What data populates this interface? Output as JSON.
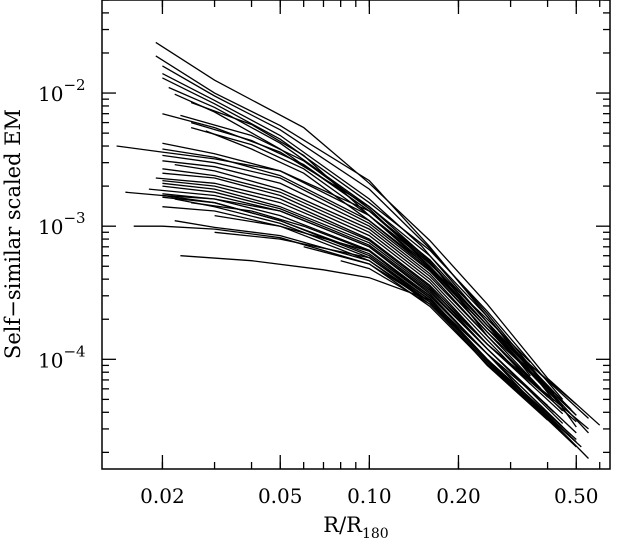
{
  "chart_data": {
    "type": "line",
    "xlabel": "R/R",
    "xlabel_subscript": "180",
    "ylabel": "Self−similar scaled EM",
    "x_scale": "log",
    "y_scale": "log",
    "xlim": [
      0.0125,
      0.65
    ],
    "ylim": [
      1.5e-05,
      0.05
    ],
    "grid": false,
    "x_ticks": [
      {
        "value": 0.02,
        "label": "0.02"
      },
      {
        "value": 0.05,
        "label": "0.05"
      },
      {
        "value": 0.1,
        "label": "0.10"
      },
      {
        "value": 0.2,
        "label": "0.20"
      },
      {
        "value": 0.5,
        "label": "0.50"
      }
    ],
    "y_ticks": [
      {
        "value": 0.01,
        "base": "10",
        "exp": "−2"
      },
      {
        "value": 0.001,
        "base": "10",
        "exp": "−3"
      },
      {
        "value": 0.0001,
        "base": "10",
        "exp": "−4"
      }
    ],
    "series": [
      {
        "x": [
          0.019,
          0.03,
          0.06,
          0.1,
          0.16,
          0.25,
          0.4,
          0.6
        ],
        "y": [
          0.024,
          0.0125,
          0.0055,
          0.0021,
          0.00078,
          0.00026,
          7.2e-05,
          3.2e-05
        ]
      },
      {
        "x": [
          0.019,
          0.03,
          0.05,
          0.1,
          0.16,
          0.25,
          0.4,
          0.55
        ],
        "y": [
          0.019,
          0.01,
          0.0057,
          0.0022,
          0.0007,
          0.00021,
          6e-05,
          2.8e-05
        ]
      },
      {
        "x": [
          0.02,
          0.03,
          0.05,
          0.1,
          0.16,
          0.25,
          0.4,
          0.5
        ],
        "y": [
          0.016,
          0.0095,
          0.0053,
          0.0019,
          0.00068,
          0.00022,
          6.2e-05,
          3.1e-05
        ]
      },
      {
        "x": [
          0.02,
          0.03,
          0.05,
          0.1,
          0.15,
          0.25,
          0.35
        ],
        "y": [
          0.014,
          0.0088,
          0.0048,
          0.0016,
          0.00071,
          0.00019,
          7.5e-05
        ]
      },
      {
        "x": [
          0.02,
          0.03,
          0.05,
          0.1,
          0.16,
          0.25,
          0.45
        ],
        "y": [
          0.013,
          0.0083,
          0.0045,
          0.0015,
          0.00066,
          0.00023,
          5e-05
        ]
      },
      {
        "x": [
          0.021,
          0.03,
          0.05,
          0.1,
          0.16,
          0.25,
          0.42
        ],
        "y": [
          0.011,
          0.0078,
          0.0042,
          0.0014,
          0.0006,
          0.00021,
          4.9e-05
        ]
      },
      {
        "x": [
          0.022,
          0.03,
          0.05,
          0.1,
          0.16,
          0.25,
          0.5
        ],
        "y": [
          0.0098,
          0.0072,
          0.0038,
          0.0013,
          0.00056,
          0.00019,
          3.8e-05
        ]
      },
      {
        "x": [
          0.025,
          0.04,
          0.06,
          0.1,
          0.16,
          0.25,
          0.45
        ],
        "y": [
          0.0085,
          0.0058,
          0.0034,
          0.0012,
          0.00053,
          0.00018,
          4.4e-05
        ]
      },
      {
        "x": [
          0.02,
          0.03,
          0.05,
          0.1,
          0.16,
          0.25,
          0.33
        ],
        "y": [
          0.007,
          0.0055,
          0.0036,
          0.0014,
          0.00055,
          0.00015,
          7.8e-05
        ]
      },
      {
        "x": [
          0.023,
          0.04,
          0.06,
          0.1,
          0.16,
          0.25,
          0.5
        ],
        "y": [
          0.0068,
          0.0048,
          0.0031,
          0.00135,
          0.0005,
          0.00017,
          4.6e-05
        ]
      },
      {
        "x": [
          0.025,
          0.04,
          0.06,
          0.1,
          0.16,
          0.25,
          0.35
        ],
        "y": [
          0.006,
          0.0044,
          0.0029,
          0.0013,
          0.00052,
          0.0002,
          9.5e-05
        ]
      },
      {
        "x": [
          0.025,
          0.04,
          0.06,
          0.1,
          0.16,
          0.25,
          0.42
        ],
        "y": [
          0.0055,
          0.0041,
          0.0027,
          0.0012,
          0.00048,
          0.00017,
          5.5e-05
        ]
      },
      {
        "x": [
          0.028,
          0.04,
          0.06,
          0.1,
          0.16,
          0.25,
          0.38
        ],
        "y": [
          0.0052,
          0.0038,
          0.0025,
          0.0011,
          0.00047,
          0.00016,
          6e-05
        ]
      },
      {
        "x": [
          0.014,
          0.02,
          0.03,
          0.05,
          0.1,
          0.16,
          0.25,
          0.55
        ],
        "y": [
          0.004,
          0.0036,
          0.0032,
          0.0026,
          0.0012,
          0.0005,
          0.00018,
          3.6e-05
        ]
      },
      {
        "x": [
          0.02,
          0.03,
          0.05,
          0.1,
          0.16,
          0.25,
          0.48
        ],
        "y": [
          0.0042,
          0.0035,
          0.0026,
          0.0013,
          0.00054,
          0.00018,
          4.2e-05
        ]
      },
      {
        "x": [
          0.02,
          0.03,
          0.05,
          0.1,
          0.16,
          0.25,
          0.45
        ],
        "y": [
          0.0038,
          0.0033,
          0.0024,
          0.0011,
          0.00049,
          0.00017,
          4.4e-05
        ]
      },
      {
        "x": [
          0.02,
          0.03,
          0.05,
          0.1,
          0.16,
          0.25,
          0.5
        ],
        "y": [
          0.0034,
          0.003,
          0.0023,
          0.00105,
          0.00046,
          0.00016,
          3.8e-05
        ]
      },
      {
        "x": [
          0.02,
          0.03,
          0.05,
          0.1,
          0.16,
          0.25,
          0.4
        ],
        "y": [
          0.0031,
          0.0028,
          0.0021,
          0.001,
          0.00044,
          0.00015,
          5.2e-05
        ]
      },
      {
        "x": [
          0.022,
          0.03,
          0.05,
          0.1,
          0.16,
          0.25,
          0.45
        ],
        "y": [
          0.0029,
          0.0026,
          0.0019,
          0.00095,
          0.00042,
          0.00015,
          4.1e-05
        ]
      },
      {
        "x": [
          0.02,
          0.03,
          0.05,
          0.1,
          0.16,
          0.25,
          0.35
        ],
        "y": [
          0.0027,
          0.0024,
          0.0018,
          0.0009,
          0.0004,
          0.00014,
          6.5e-05
        ]
      },
      {
        "x": [
          0.02,
          0.03,
          0.05,
          0.1,
          0.16,
          0.25,
          0.5
        ],
        "y": [
          0.0025,
          0.0023,
          0.0017,
          0.00085,
          0.00038,
          0.00013,
          3.4e-05
        ]
      },
      {
        "x": [
          0.019,
          0.03,
          0.05,
          0.1,
          0.16,
          0.25,
          0.45
        ],
        "y": [
          0.0023,
          0.0021,
          0.0016,
          0.0008,
          0.00036,
          0.00013,
          3.9e-05
        ]
      },
      {
        "x": [
          0.02,
          0.03,
          0.05,
          0.1,
          0.16,
          0.25,
          0.42
        ],
        "y": [
          0.0022,
          0.002,
          0.0015,
          0.00078,
          0.00035,
          0.00012,
          4e-05
        ]
      },
      {
        "x": [
          0.02,
          0.03,
          0.05,
          0.1,
          0.16,
          0.25,
          0.55
        ],
        "y": [
          0.0021,
          0.0019,
          0.0014,
          0.00075,
          0.00034,
          0.00013,
          3e-05
        ]
      },
      {
        "x": [
          0.02,
          0.03,
          0.05,
          0.1,
          0.16,
          0.25,
          0.45
        ],
        "y": [
          0.002,
          0.0018,
          0.00135,
          0.00072,
          0.00033,
          0.00012,
          3.3e-05
        ]
      },
      {
        "x": [
          0.018,
          0.03,
          0.05,
          0.1,
          0.16,
          0.25,
          0.5
        ],
        "y": [
          0.0019,
          0.0017,
          0.0013,
          0.0007,
          0.00032,
          0.00012,
          2.8e-05
        ]
      },
      {
        "x": [
          0.015,
          0.02,
          0.03,
          0.05,
          0.1,
          0.16,
          0.25,
          0.4
        ],
        "y": [
          0.0018,
          0.0017,
          0.0016,
          0.0013,
          0.0007,
          0.00031,
          0.00011,
          4.5e-05
        ]
      },
      {
        "x": [
          0.02,
          0.03,
          0.05,
          0.1,
          0.16,
          0.25,
          0.48
        ],
        "y": [
          0.00175,
          0.0016,
          0.0012,
          0.00066,
          0.0003,
          0.00011,
          2.7e-05
        ]
      },
      {
        "x": [
          0.02,
          0.03,
          0.05,
          0.1,
          0.16,
          0.25,
          0.42
        ],
        "y": [
          0.0017,
          0.0015,
          0.0011,
          0.00062,
          0.00029,
          0.0001,
          3.4e-05
        ]
      },
      {
        "x": [
          0.02,
          0.03,
          0.05,
          0.1,
          0.16,
          0.25,
          0.5
        ],
        "y": [
          0.00165,
          0.0015,
          0.0011,
          0.0006,
          0.00028,
          0.0001,
          2.5e-05
        ]
      },
      {
        "x": [
          0.022,
          0.03,
          0.05,
          0.1,
          0.16,
          0.25,
          0.45
        ],
        "y": [
          0.0016,
          0.0014,
          0.00105,
          0.00058,
          0.00027,
          9.8e-05,
          2.8e-05
        ]
      },
      {
        "x": [
          0.025,
          0.04,
          0.06,
          0.1,
          0.16,
          0.25,
          0.38
        ],
        "y": [
          0.0015,
          0.0013,
          0.001,
          0.00065,
          0.00029,
          0.0001,
          4.2e-05
        ]
      },
      {
        "x": [
          0.02,
          0.03,
          0.05,
          0.1,
          0.16,
          0.25,
          0.52
        ],
        "y": [
          0.0014,
          0.0013,
          0.001,
          0.00055,
          0.00026,
          9.5e-05,
          2.2e-05
        ]
      },
      {
        "x": [
          0.03,
          0.05,
          0.1,
          0.16,
          0.25,
          0.45
        ],
        "y": [
          0.0012,
          0.001,
          0.00065,
          0.0003,
          0.00011,
          3.1e-05
        ]
      },
      {
        "x": [
          0.022,
          0.03,
          0.05,
          0.1,
          0.16,
          0.25,
          0.4
        ],
        "y": [
          0.0011,
          0.00098,
          0.00085,
          0.00055,
          0.00027,
          0.0001,
          3.5e-05
        ]
      },
      {
        "x": [
          0.016,
          0.02,
          0.03,
          0.05,
          0.1,
          0.16,
          0.25,
          0.45
        ],
        "y": [
          0.001,
          0.001,
          0.00095,
          0.00082,
          0.00052,
          0.00025,
          9.2e-05,
          2.8e-05
        ]
      },
      {
        "x": [
          0.03,
          0.05,
          0.1,
          0.16,
          0.25,
          0.5
        ],
        "y": [
          0.0009,
          0.0008,
          0.00058,
          0.00028,
          0.0001,
          2.4e-05
        ]
      },
      {
        "x": [
          0.023,
          0.04,
          0.07,
          0.1,
          0.16,
          0.25,
          0.35,
          0.55
        ],
        "y": [
          0.0006,
          0.00055,
          0.00047,
          0.00041,
          0.00028,
          0.00011,
          5e-05,
          1.8e-05
        ]
      },
      {
        "x": [
          0.06,
          0.1,
          0.16,
          0.25,
          0.4
        ],
        "y": [
          0.0007,
          0.00052,
          0.00027,
          9e-05,
          3.5e-05
        ]
      },
      {
        "x": [
          0.08,
          0.1,
          0.16,
          0.25,
          0.5
        ],
        "y": [
          0.00055,
          0.00048,
          0.00026,
          9.5e-05,
          2.2e-05
        ]
      }
    ]
  }
}
